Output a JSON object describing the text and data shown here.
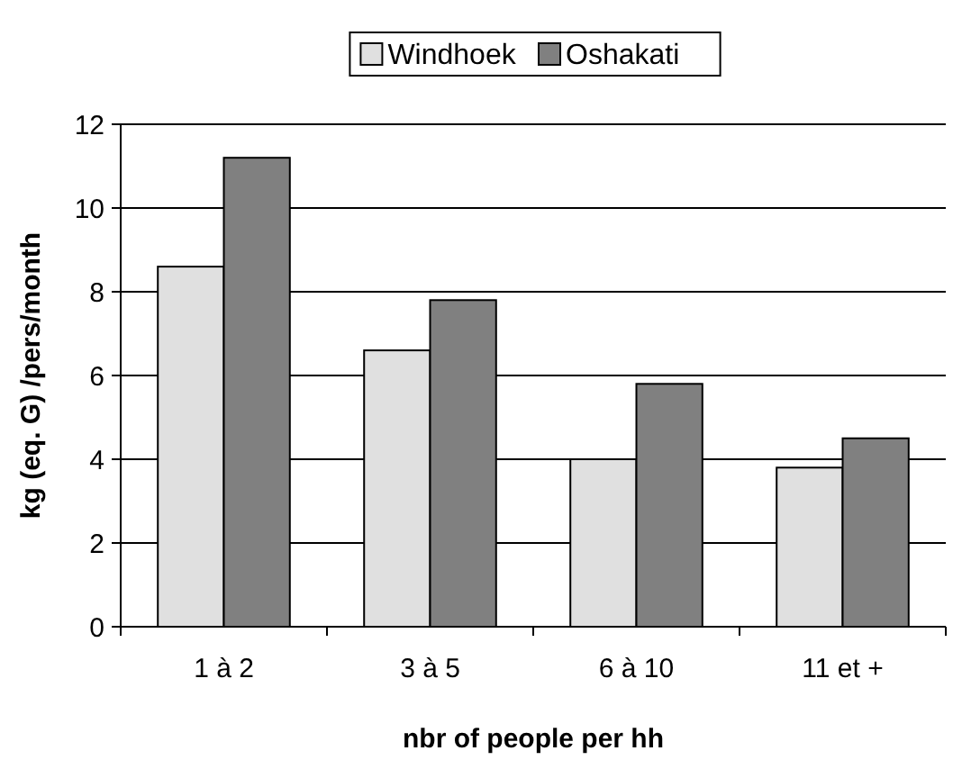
{
  "chart_data": {
    "type": "bar",
    "xlabel": "nbr of people per hh",
    "ylabel": "kg (eq. G) /pers/month",
    "categories": [
      "1 à 2",
      "3 à 5",
      "6 à 10",
      "11 et +"
    ],
    "series": [
      {
        "name": "Windhoek",
        "color": "#e0e0e0",
        "values": [
          8.6,
          6.6,
          4.0,
          3.8
        ]
      },
      {
        "name": "Oshakati",
        "color": "#808080",
        "values": [
          11.2,
          7.8,
          5.8,
          4.5
        ]
      }
    ],
    "ylim": [
      0,
      12
    ],
    "yticks": [
      0,
      2,
      4,
      6,
      8,
      10,
      12
    ],
    "grid": "y",
    "legend": "top"
  }
}
